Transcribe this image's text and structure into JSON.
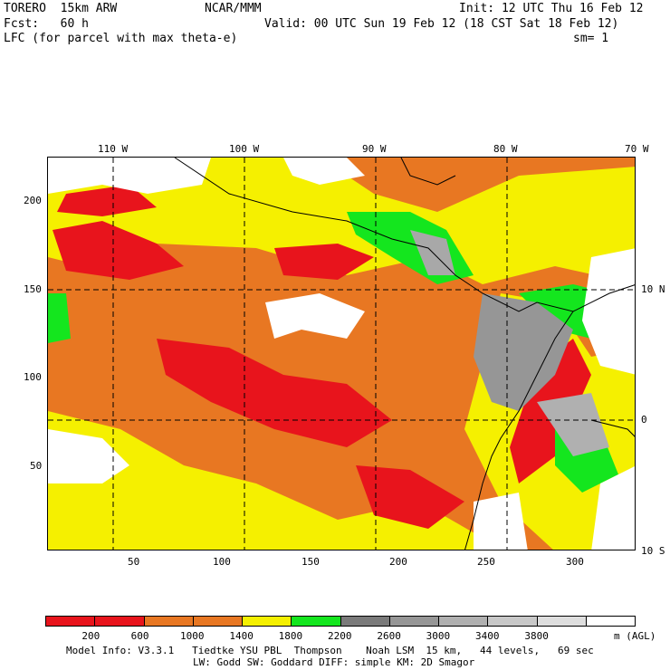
{
  "header": {
    "model": "TORERO  15km ARW",
    "org": "NCAR/MMM",
    "init": "Init: 12 UTC Thu 16 Feb 12",
    "fcst": "Fcst:   60 h",
    "valid": "Valid: 00 UTC Sun 19 Feb 12 (18 CST Sat 18 Feb 12)",
    "field": "LFC (for parcel with max theta-e)",
    "smooth": "sm= 1"
  },
  "map": {
    "top_ticks": [
      "110 W",
      "100 W",
      "90 W",
      "80 W",
      "70 W"
    ],
    "left_ticks": [
      "200",
      "150",
      "100",
      "50"
    ],
    "bottom_ticks": [
      "50",
      "100",
      "150",
      "200",
      "250",
      "300"
    ],
    "right_ticks": [
      "10 N",
      "0",
      "10 S"
    ],
    "colors": {
      "ocean_orange": "#e87722",
      "red": "#e8141c",
      "yellow": "#f5f000",
      "green": "#14e61e",
      "white": "#ffffff",
      "gray_dark": "#7a7a7a",
      "gray_mid": "#a8a8a8",
      "gray_light": "#d0d0d0"
    }
  },
  "legend": {
    "colors": [
      "#e8141c",
      "#e8141c",
      "#e87722",
      "#e87722",
      "#f5f000",
      "#14e61e",
      "#7a7a7a",
      "#969696",
      "#b0b0b0",
      "#c8c8c8",
      "#dedede",
      "#ffffff"
    ],
    "labels": [
      "200",
      "600",
      "1000",
      "1400",
      "1800",
      "2200",
      "2600",
      "3000",
      "3400",
      "3800"
    ],
    "unit": "m (AGL)"
  },
  "footer": {
    "line1": "Model Info: V3.3.1   Tiedtke YSU PBL  Thompson    Noah LSM  15 km,   44 levels,   69 sec",
    "line2": "LW: Godd SW: Goddard DIFF: simple KM: 2D Smagor"
  }
}
